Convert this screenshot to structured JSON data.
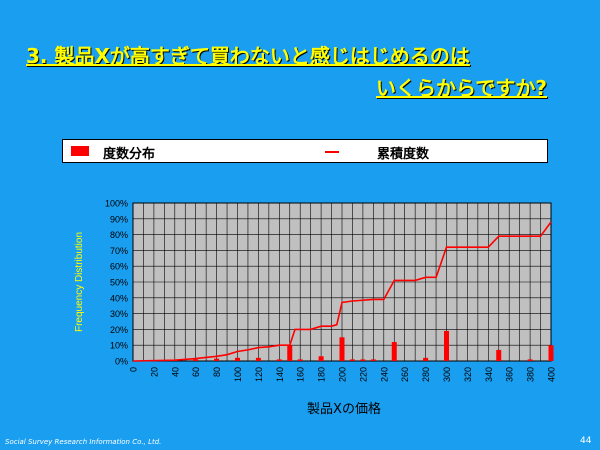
{
  "slide": {
    "title_line1": "3. 製品Xが高すぎて買わないと感じはじめるのは",
    "title_line2": "いくらからですか?",
    "footer": "Social Survey Research Information Co., Ltd.",
    "page_number": "44"
  },
  "colors": {
    "background": "#1a9ef0",
    "title": "#ffff00",
    "series": "#ff0000",
    "plot_bg": "#c0c0c0"
  },
  "chart_data": {
    "type": "bar",
    "legend": [
      "度数分布",
      "累積度数"
    ],
    "xlabel": "製品Xの価格",
    "ylabel": "Frequency Distribution",
    "x_ticks": [
      "0",
      "20",
      "40",
      "60",
      "80",
      "100",
      "120",
      "140",
      "160",
      "180",
      "200",
      "220",
      "240",
      "260",
      "280",
      "300",
      "320",
      "340",
      "360",
      "380",
      "400"
    ],
    "y_ticks": [
      "0%",
      "10%",
      "20%",
      "30%",
      "40%",
      "50%",
      "60%",
      "70%",
      "80%",
      "90%",
      "100%"
    ],
    "xlim": [
      0,
      400
    ],
    "ylim": [
      0,
      100
    ],
    "series": [
      {
        "name": "度数分布",
        "type": "bar",
        "points": [
          [
            40,
            0.5
          ],
          [
            60,
            1
          ],
          [
            80,
            1.5
          ],
          [
            100,
            2
          ],
          [
            120,
            2
          ],
          [
            140,
            1
          ],
          [
            150,
            10
          ],
          [
            160,
            1
          ],
          [
            180,
            3
          ],
          [
            200,
            15
          ],
          [
            210,
            1
          ],
          [
            220,
            1
          ],
          [
            230,
            1
          ],
          [
            250,
            12
          ],
          [
            280,
            2
          ],
          [
            300,
            19
          ],
          [
            350,
            7
          ],
          [
            380,
            1
          ],
          [
            400,
            10
          ]
        ]
      },
      {
        "name": "累積度数",
        "type": "line",
        "points": [
          [
            0,
            0
          ],
          [
            40,
            0.5
          ],
          [
            60,
            1.5
          ],
          [
            80,
            3
          ],
          [
            90,
            4
          ],
          [
            100,
            6
          ],
          [
            110,
            7
          ],
          [
            120,
            8.5
          ],
          [
            130,
            9
          ],
          [
            140,
            10
          ],
          [
            150,
            10
          ],
          [
            155,
            20
          ],
          [
            170,
            20
          ],
          [
            180,
            22
          ],
          [
            190,
            22
          ],
          [
            195,
            23
          ],
          [
            200,
            37
          ],
          [
            210,
            38
          ],
          [
            230,
            39
          ],
          [
            240,
            39
          ],
          [
            250,
            51
          ],
          [
            270,
            51
          ],
          [
            280,
            53
          ],
          [
            290,
            53
          ],
          [
            300,
            72
          ],
          [
            340,
            72
          ],
          [
            350,
            79
          ],
          [
            390,
            79
          ],
          [
            400,
            88
          ]
        ]
      }
    ]
  }
}
